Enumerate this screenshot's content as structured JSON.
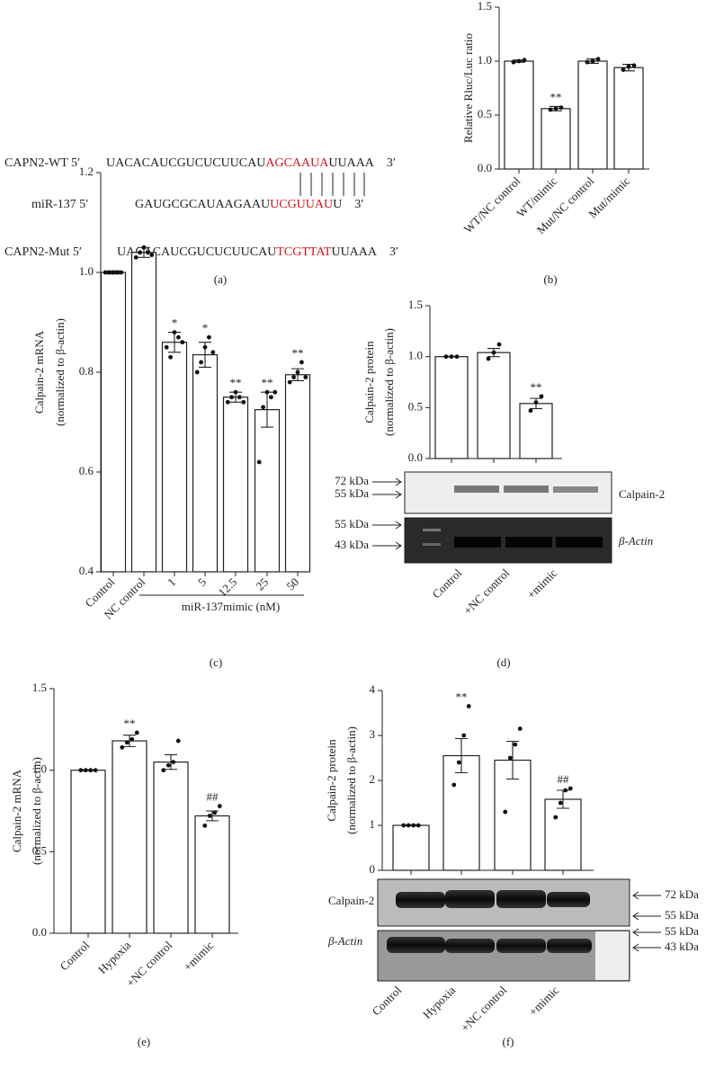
{
  "sequence": {
    "panel_label": "(a)",
    "rows": [
      {
        "label": "CAPN2-WT 5′",
        "parts": [
          "UACACAUCGUCUCUUCAU",
          "AGCAAUA",
          "UUAAA"
        ],
        "end": "3′"
      },
      {
        "label": "miR-137 5′",
        "parts": [
          "GAUGCGCAUAAGAAU",
          "UCGUUAU",
          "U"
        ],
        "end": "3′"
      },
      {
        "label": "CAPN2-Mut 5′",
        "parts": [
          "UACACAUCGUCUCUUCAU",
          "TCGTTAT",
          "UUAAA"
        ],
        "end": "3′"
      }
    ]
  },
  "blots": [
    {
      "markers": [
        "72 kDa",
        "55 kDa",
        "55 kDa",
        "43 kDa"
      ],
      "bands": [
        "Calpain-2",
        "β-Actin"
      ]
    },
    {
      "markers": [
        "72 kDa",
        "55 kDa",
        "55 kDa",
        "43 kDa"
      ],
      "bands": [
        "Calpain-2",
        "β-Actin"
      ]
    }
  ],
  "chart_data": [
    {
      "type": "bar",
      "panel_label": "(b)",
      "ylabel": [
        "Relative Rluc/Luc ratio"
      ],
      "categories": [
        "WT/NC control",
        "WT/mimic",
        "Mut/NC control",
        "Mut/mimic"
      ],
      "values": [
        1.0,
        0.56,
        1.0,
        0.94
      ],
      "errors": [
        0.01,
        0.02,
        0.02,
        0.03
      ],
      "points": [
        [
          0.99,
          1.0,
          1.01
        ],
        [
          0.55,
          0.56,
          0.57
        ],
        [
          0.99,
          1.0,
          1.02
        ],
        [
          0.92,
          0.95,
          0.96
        ]
      ],
      "significance": [
        null,
        "**",
        null,
        null
      ],
      "color": "#ffffff",
      "ylim": [
        0,
        1.5
      ],
      "yticks": [
        {
          "value": 0,
          "label": "0.0"
        },
        0.5,
        {
          "value": 1,
          "label": "1.0"
        },
        1.5
      ]
    },
    {
      "type": "bar",
      "panel_label": "(c)",
      "ylabel": [
        "Calpain-2 mRNA",
        "(normalized to β-actin)"
      ],
      "categories": [
        "Control",
        "NC control",
        "1",
        "5",
        "12.5",
        "25",
        "50"
      ],
      "group_label": "miR-137mimic (nM)",
      "values": [
        1.0,
        1.04,
        0.86,
        0.835,
        0.75,
        0.725,
        0.795
      ],
      "errors": [
        0.003,
        0.01,
        0.02,
        0.025,
        0.01,
        0.035,
        0.012
      ],
      "points": [
        [
          1.0,
          1.0,
          1.0,
          1.0,
          1.0
        ],
        [
          1.03,
          1.04,
          1.05,
          1.04,
          1.035
        ],
        [
          0.85,
          0.83,
          0.88,
          0.87,
          0.86
        ],
        [
          0.8,
          0.82,
          0.85,
          0.87,
          0.84
        ],
        [
          0.74,
          0.75,
          0.76,
          0.75,
          0.74
        ],
        [
          0.62,
          0.73,
          0.76,
          0.75,
          0.76
        ],
        [
          0.78,
          0.79,
          0.8,
          0.82,
          0.79
        ]
      ],
      "significance": [
        null,
        null,
        "*",
        "*",
        "**",
        "**",
        "**"
      ],
      "color": "#ffffff",
      "ylim": [
        0.4,
        1.2
      ],
      "yticks": [
        0.4,
        0.6,
        0.8,
        {
          "value": 1,
          "label": "1.0"
        },
        1.2
      ]
    },
    {
      "type": "bar",
      "panel_label": "(d)",
      "ylabel": [
        "Calpain-2 protein",
        "(normalized to β-actin)"
      ],
      "categories": [
        "Control",
        "+NC control",
        "+mimic"
      ],
      "values": [
        1.0,
        1.04,
        0.54
      ],
      "errors": [
        0.003,
        0.04,
        0.05
      ],
      "points": [
        [
          1.0,
          1.0,
          1.0
        ],
        [
          0.98,
          1.04,
          1.12
        ],
        [
          0.47,
          0.55,
          0.61
        ]
      ],
      "significance": [
        null,
        null,
        "**"
      ],
      "color": "#ffffff",
      "ylim": [
        0,
        1.5
      ],
      "yticks": [
        {
          "value": 0,
          "label": "0.0"
        },
        0.5,
        {
          "value": 1,
          "label": "1.0"
        },
        1.5
      ]
    },
    {
      "type": "bar",
      "panel_label": "(e)",
      "ylabel": [
        "Calpain-2 mRNA",
        "(normalized to β-actin)"
      ],
      "categories": [
        "Control",
        "Hypoxia",
        "+NC control",
        "+mimic"
      ],
      "values": [
        1.0,
        1.18,
        1.05,
        0.72
      ],
      "errors": [
        0.003,
        0.035,
        0.045,
        0.03
      ],
      "points": [
        [
          1.0,
          1.0,
          1.0,
          1.0
        ],
        [
          1.14,
          1.17,
          1.19,
          1.23
        ],
        [
          1.0,
          1.03,
          1.05,
          1.18
        ],
        [
          0.66,
          0.72,
          0.74,
          0.78
        ]
      ],
      "significance": [
        null,
        "**",
        null,
        "##"
      ],
      "color": "#ffffff",
      "ylim": [
        0,
        1.5
      ],
      "yticks": [
        {
          "value": 0,
          "label": "0.0"
        },
        0.5,
        {
          "value": 1,
          "label": "1.0"
        },
        1.5
      ]
    },
    {
      "type": "bar",
      "panel_label": "(f)",
      "ylabel": [
        "Calpain-2 protein",
        "(normalized to β-actin)"
      ],
      "categories": [
        "Control",
        "Hypoxia",
        "+NC control",
        "+mimic"
      ],
      "values": [
        1.0,
        2.55,
        2.45,
        1.58
      ],
      "errors": [
        0.01,
        0.38,
        0.42,
        0.2
      ],
      "points": [
        [
          1.0,
          1.0,
          1.0,
          1.0
        ],
        [
          1.9,
          2.4,
          3.0,
          3.65
        ],
        [
          1.3,
          2.5,
          2.8,
          3.15
        ],
        [
          1.18,
          1.5,
          1.78,
          1.82
        ]
      ],
      "significance": [
        null,
        "**",
        null,
        "##"
      ],
      "color": "#ffffff",
      "ylim": [
        0,
        4
      ],
      "yticks": [
        0,
        1,
        2,
        3,
        4
      ]
    }
  ]
}
